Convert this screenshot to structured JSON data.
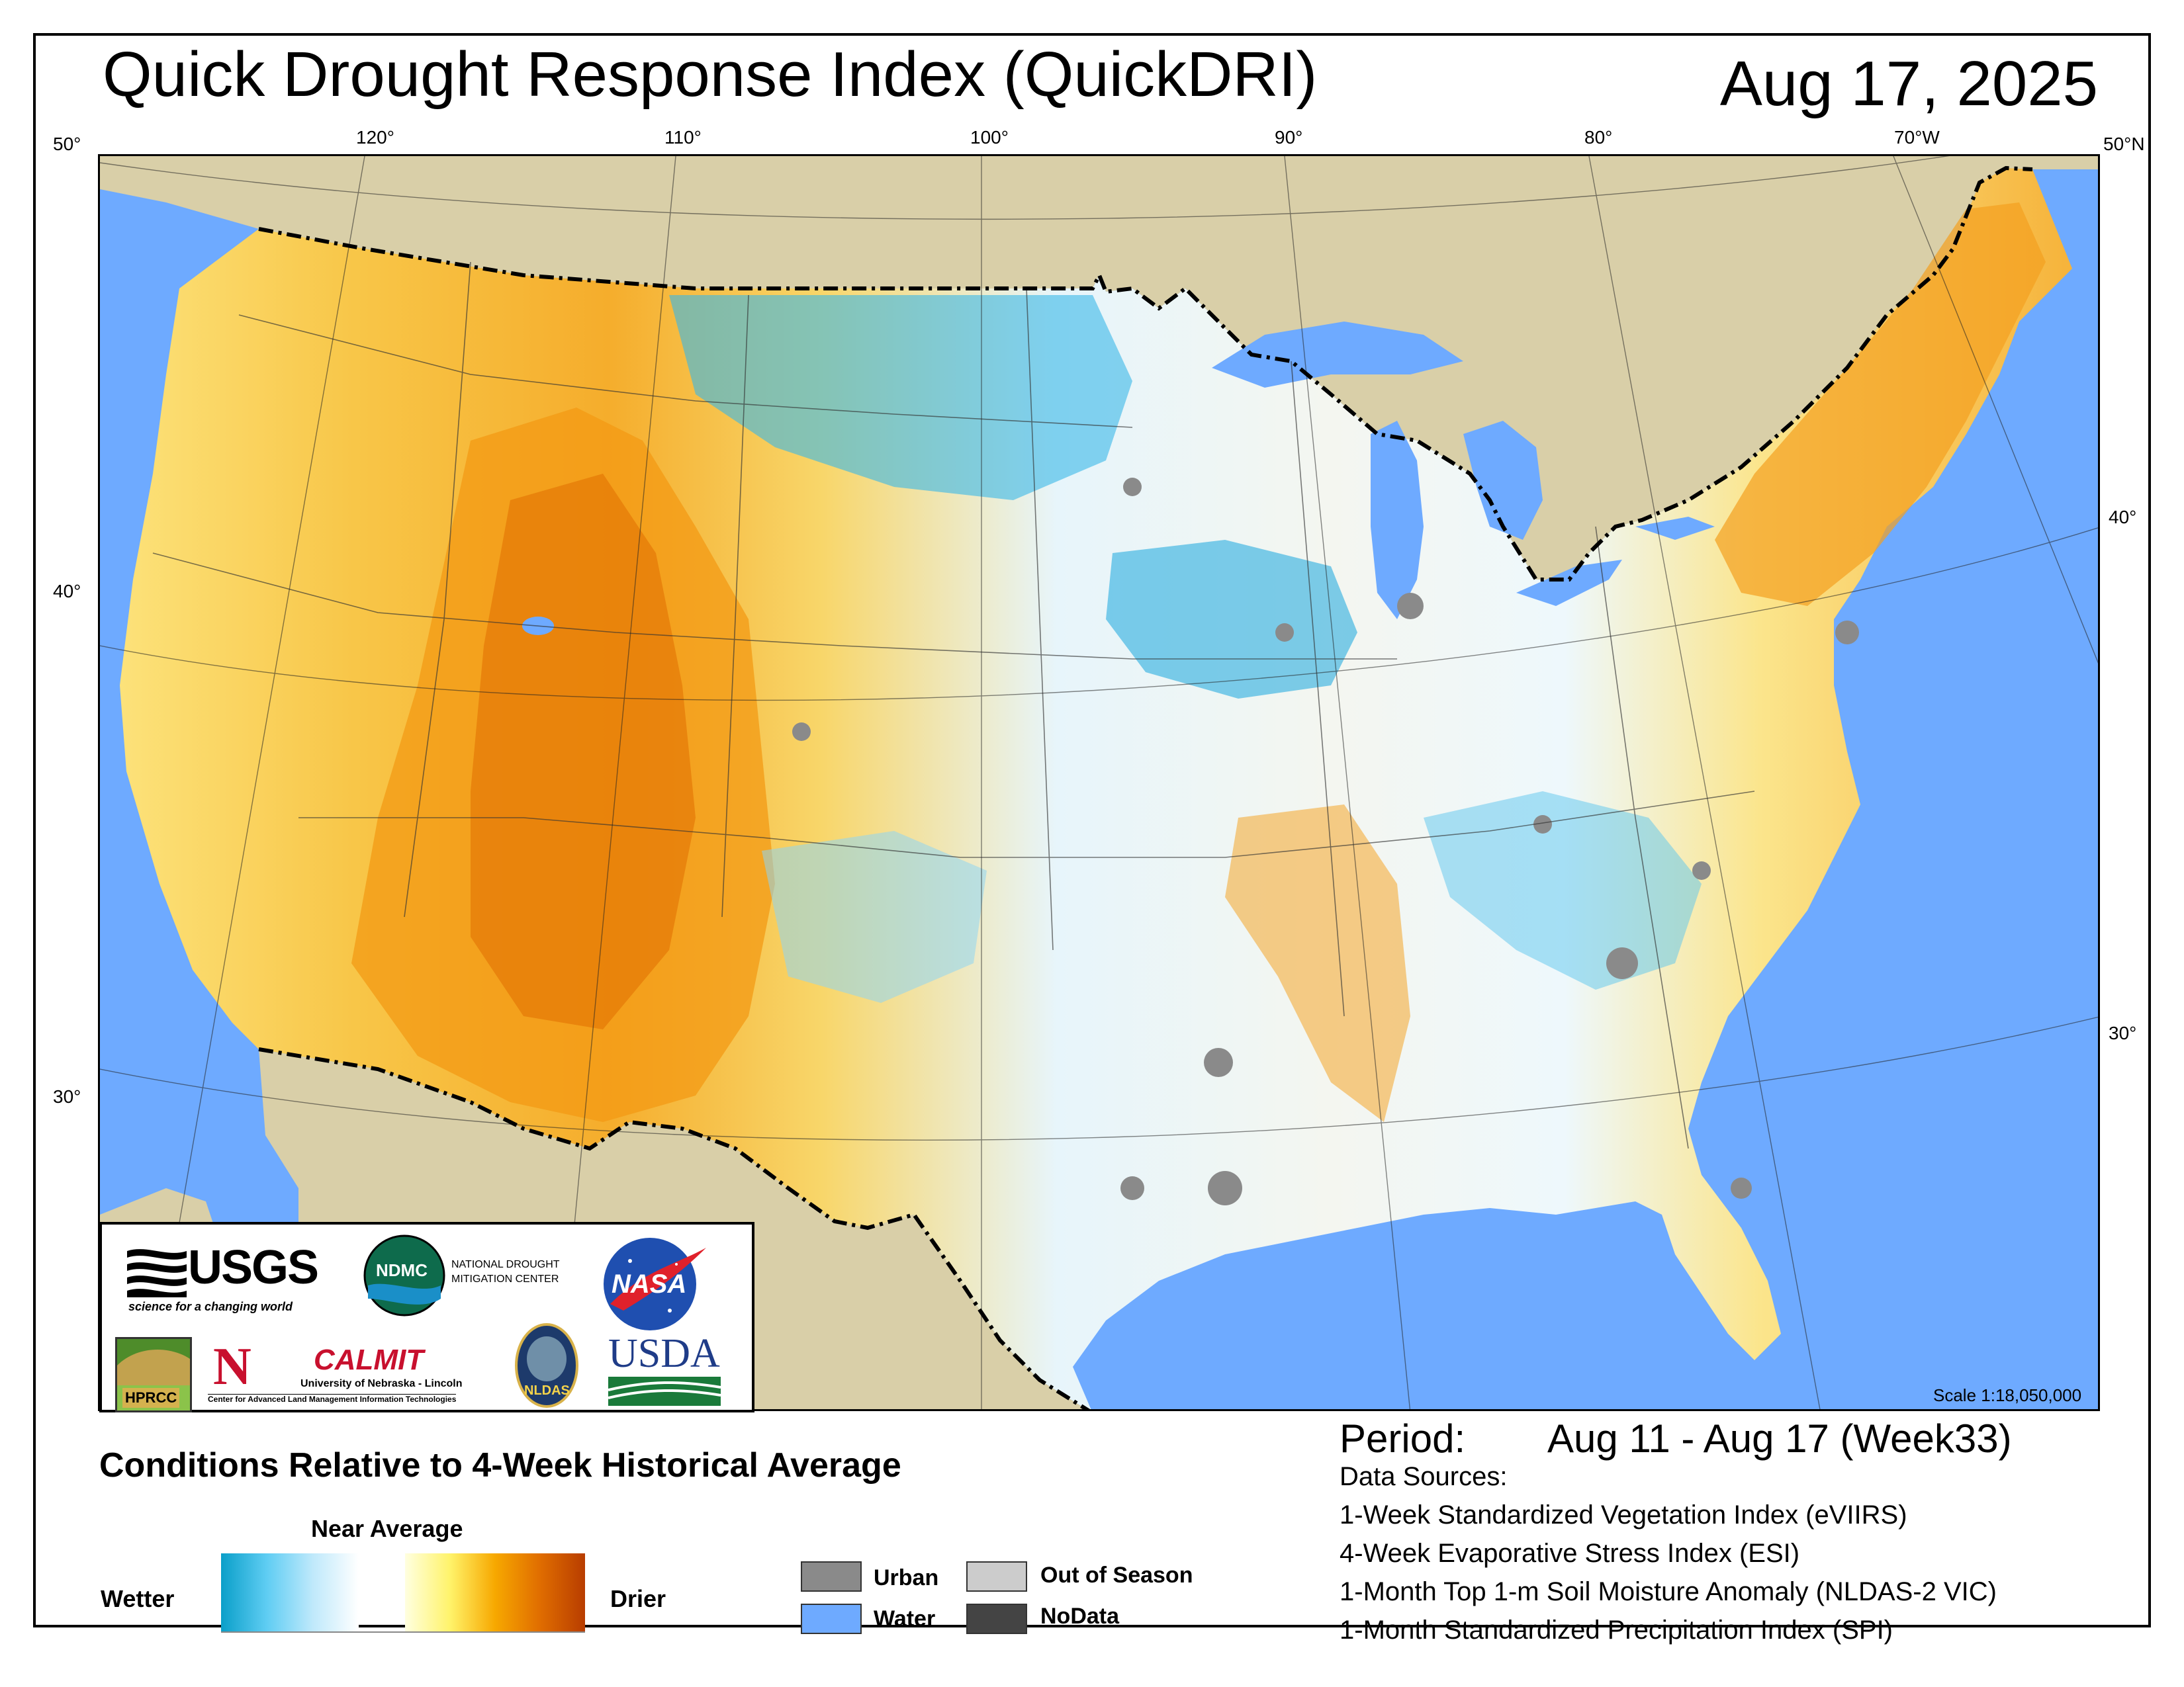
{
  "header": {
    "title": "Quick Drought Response Index (QuickDRI)",
    "date": "Aug 17, 2025"
  },
  "graticule": {
    "top_lon": [
      "120°",
      "110°",
      "100°",
      "90°",
      "80°",
      "70°W"
    ],
    "corner_left": "50°",
    "corner_right": "50°N",
    "left_lat": [
      "40°",
      "30°"
    ],
    "right_lat": [
      "40°",
      "30°"
    ]
  },
  "colors": {
    "water": "#6eaaff",
    "land_outside": "#d9cfa8",
    "urban": "#8a8a8a",
    "out_of_season": "#cccccc",
    "nodata": "#444444",
    "wet_dark": "#0a9fc9",
    "wet_light": "#bfe9fb",
    "dry_light": "#fff8a8",
    "dry_mid": "#f7a800",
    "dry_dark": "#b83d00"
  },
  "logos": {
    "usgs": "USGS",
    "usgs_tagline": "science for a changing world",
    "ndmc": "NDMC",
    "ndmc_name_1": "NATIONAL DROUGHT",
    "ndmc_name_2": "MITIGATION CENTER",
    "nasa": "NASA",
    "hprcc": "HPRCC",
    "unl_mark": "N",
    "calmit": "CALMIT",
    "calmit_sub": "University of Nebraska - Lincoln",
    "calmit_sub2": "Center for Advanced Land Management Information Technologies",
    "nldas": "NLDAS",
    "usda": "USDA"
  },
  "scale": "Scale 1:18,050,000",
  "period": {
    "label": "Period:",
    "value": "Aug 11 - Aug 17 (Week33)"
  },
  "data_sources": {
    "heading": "Data Sources:",
    "items": [
      "1-Week Standardized Vegetation Index (eVIIRS)",
      "4-Week Evaporative Stress Index (ESI)",
      "1-Month Top 1-m Soil Moisture Anomaly (NLDAS-2 VIC)",
      "1-Month Standardized Precipitation Index (SPI)"
    ]
  },
  "legend": {
    "heading": "Conditions Relative to 4-Week Historical Average",
    "near_average": "Near Average",
    "wetter": "Wetter",
    "drier": "Drier",
    "urban": "Urban",
    "water": "Water",
    "out_of_season": "Out of Season",
    "nodata": "NoData"
  }
}
